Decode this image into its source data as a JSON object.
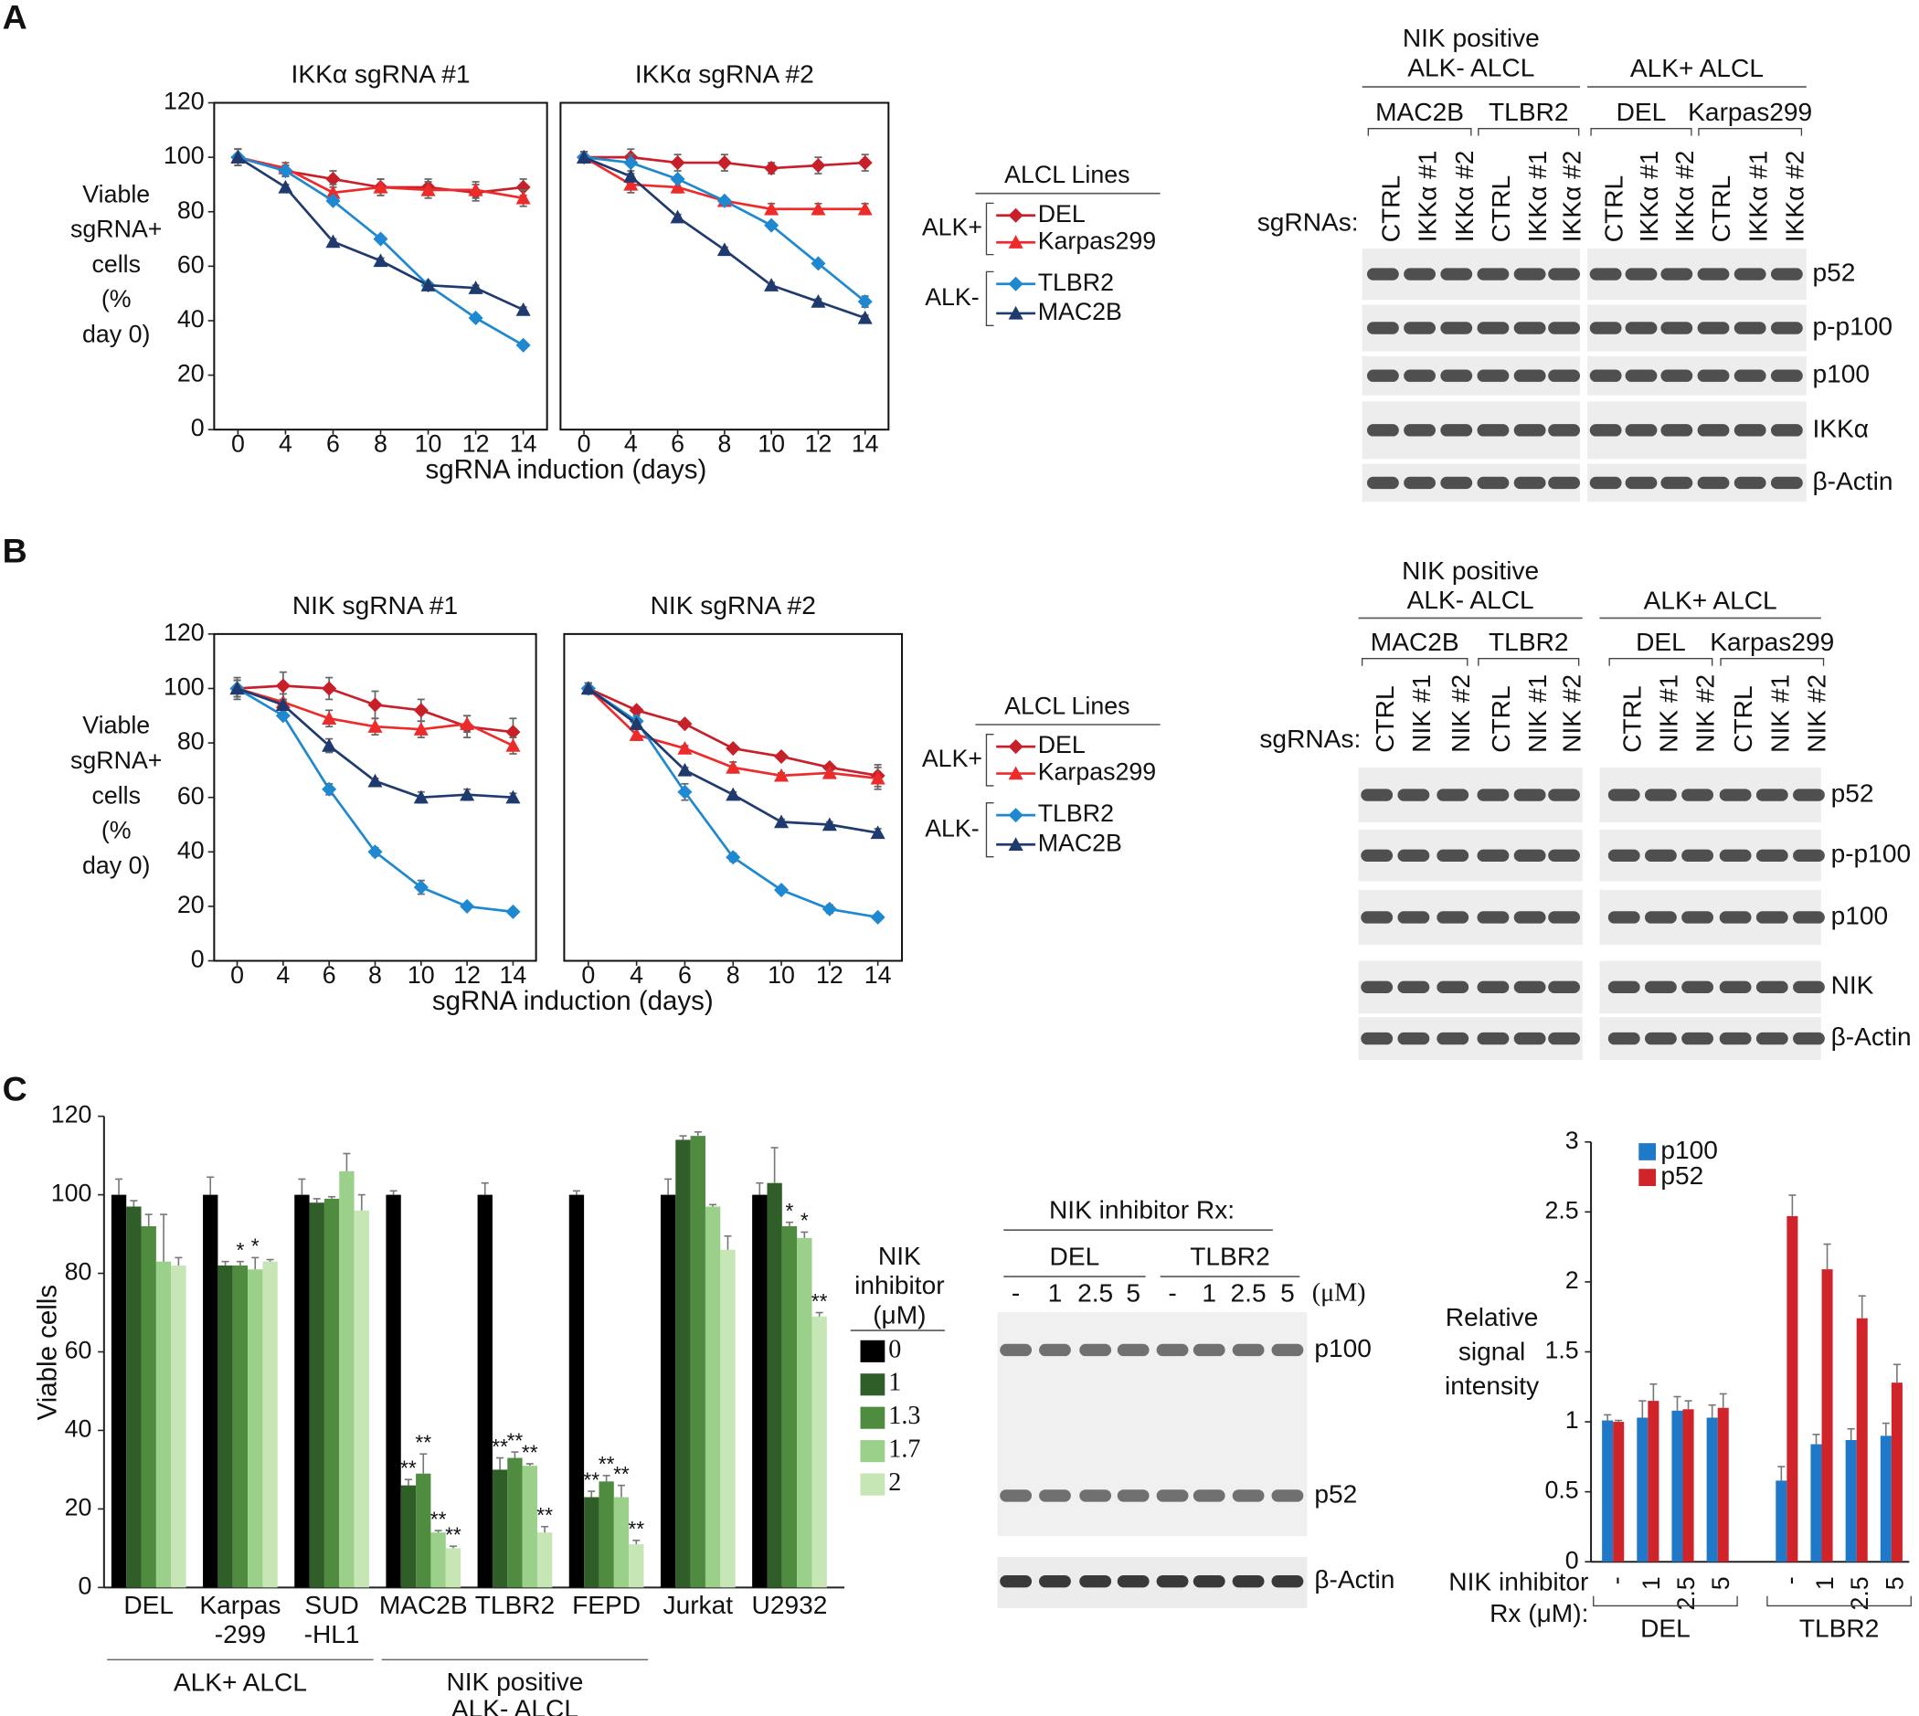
{
  "panel_labels": [
    "A",
    "B",
    "C"
  ],
  "chart_data": [
    {
      "type": "line",
      "title": "IKKα sgRNA #1",
      "ylabel": "Viable\nsgRNA+\ncells\n(%\nday 0)",
      "xlabel": "sgRNA induction (days)",
      "categories": [
        "0",
        "4",
        "6",
        "8",
        "10",
        "12",
        "14"
      ],
      "ylim": [
        0,
        120
      ],
      "yticks": [
        0,
        20,
        40,
        60,
        80,
        100,
        120
      ],
      "legend_title": "ALCL Lines",
      "legend_groups": [
        "ALK+",
        "ALK-"
      ],
      "series": [
        {
          "name": "DEL",
          "color": "#c8202a",
          "marker": "diamond",
          "values": [
            100,
            95,
            92,
            89,
            89,
            87,
            89
          ],
          "errors": [
            3,
            2,
            3,
            3,
            3,
            3,
            3
          ]
        },
        {
          "name": "Karpas299",
          "color": "#ee2b2b",
          "marker": "triangle",
          "values": [
            100,
            96,
            87,
            89,
            88,
            88,
            85
          ],
          "errors": [
            3,
            2,
            3,
            3,
            3,
            3,
            3
          ]
        },
        {
          "name": "TLBR2",
          "color": "#1e88d0",
          "marker": "diamond",
          "values": [
            100,
            95,
            84,
            70,
            53,
            41,
            31
          ],
          "errors": [
            3,
            2,
            1,
            1,
            1,
            1,
            1
          ]
        },
        {
          "name": "MAC2B",
          "color": "#1f3a6e",
          "marker": "triangle",
          "values": [
            100,
            89,
            69,
            62,
            53,
            52,
            44
          ],
          "errors": [
            3,
            1,
            1,
            1,
            1,
            1,
            1
          ]
        }
      ]
    },
    {
      "type": "line",
      "title": "IKKα sgRNA #2",
      "categories": [
        "0",
        "4",
        "6",
        "8",
        "10",
        "12",
        "14"
      ],
      "ylim": [
        0,
        120
      ],
      "series": [
        {
          "color": "#c8202a",
          "marker": "diamond",
          "values": [
            100,
            100,
            98,
            98,
            96,
            97,
            98
          ],
          "errors": [
            2,
            3,
            3,
            3,
            2,
            3,
            3
          ]
        },
        {
          "color": "#ee2b2b",
          "marker": "triangle",
          "values": [
            100,
            90,
            89,
            84,
            81,
            81,
            81
          ],
          "errors": [
            2,
            3,
            2,
            1,
            2,
            2,
            2
          ]
        },
        {
          "color": "#1e88d0",
          "marker": "diamond",
          "values": [
            100,
            98,
            92,
            84,
            75,
            61,
            47
          ],
          "errors": [
            2,
            3,
            1,
            1,
            1,
            1,
            2
          ]
        },
        {
          "color": "#1f3a6e",
          "marker": "triangle",
          "values": [
            100,
            93,
            78,
            66,
            53,
            47,
            41
          ],
          "errors": [
            2,
            1,
            1,
            1,
            1,
            1,
            1
          ]
        }
      ]
    },
    {
      "type": "line",
      "title": "NIK sgRNA #1",
      "ylabel": "Viable\nsgRNA+\ncells\n(%\nday 0)",
      "xlabel": "sgRNA induction (days)",
      "categories": [
        "0",
        "4",
        "6",
        "8",
        "10",
        "12",
        "14"
      ],
      "ylim": [
        0,
        120
      ],
      "yticks": [
        0,
        20,
        40,
        60,
        80,
        100,
        120
      ],
      "legend_title": "ALCL Lines",
      "legend_groups": [
        "ALK+",
        "ALK-"
      ],
      "series": [
        {
          "name": "DEL",
          "color": "#c8202a",
          "marker": "diamond",
          "values": [
            100,
            101,
            100,
            94,
            92,
            86,
            84
          ],
          "errors": [
            4,
            5,
            4,
            5,
            4,
            4,
            5
          ]
        },
        {
          "name": "Karpas299",
          "color": "#ee2b2b",
          "marker": "triangle",
          "values": [
            100,
            95,
            89,
            86,
            85,
            87,
            79
          ],
          "errors": [
            3,
            3,
            3,
            3,
            3,
            3,
            3
          ]
        },
        {
          "name": "TLBR2",
          "color": "#1e88d0",
          "marker": "diamond",
          "values": [
            100,
            90,
            63,
            40,
            27,
            20,
            18
          ],
          "errors": [
            3,
            1,
            2,
            1.5,
            2.5,
            1,
            1
          ]
        },
        {
          "name": "MAC2B",
          "color": "#1f3a6e",
          "marker": "triangle",
          "values": [
            100,
            94,
            79,
            66,
            60,
            61,
            60
          ],
          "errors": [
            3,
            2,
            2.5,
            1,
            2,
            2,
            1.5
          ]
        }
      ]
    },
    {
      "type": "line",
      "title": "NIK sgRNA #2",
      "categories": [
        "0",
        "4",
        "6",
        "8",
        "10",
        "12",
        "14"
      ],
      "ylim": [
        0,
        120
      ],
      "series": [
        {
          "color": "#c8202a",
          "marker": "diamond",
          "values": [
            100,
            92,
            87,
            78,
            75,
            71,
            68
          ],
          "errors": [
            2,
            1,
            1,
            1,
            1,
            1,
            4
          ]
        },
        {
          "color": "#ee2b2b",
          "marker": "triangle",
          "values": [
            100,
            83,
            78,
            71,
            68,
            69,
            67
          ],
          "errors": [
            2,
            2,
            1,
            2,
            1,
            1,
            4
          ]
        },
        {
          "color": "#1e88d0",
          "marker": "diamond",
          "values": [
            100,
            88,
            62,
            38,
            26,
            19,
            16
          ],
          "errors": [
            2,
            2,
            3,
            1.5,
            1,
            1.5,
            1
          ]
        },
        {
          "color": "#1f3a6e",
          "marker": "triangle",
          "values": [
            100,
            87,
            70,
            61,
            51,
            50,
            47
          ],
          "errors": [
            2,
            1,
            1,
            1,
            1,
            1,
            1.5
          ]
        }
      ]
    },
    {
      "type": "bar",
      "ylabel": "Viable cells",
      "ylim": [
        0,
        120
      ],
      "yticks": [
        0,
        20,
        40,
        60,
        80,
        100,
        120
      ],
      "legend_title": "NIK\ninhibitor\n(μM)",
      "groups": [
        {
          "label": "ALK+ ALCL",
          "categories": [
            "DEL",
            "Karpas\n-299",
            "SUD\n-HL1"
          ]
        },
        {
          "label": "NIK positive\nALK- ALCL",
          "categories": [
            "MAC2B",
            "TLBR2",
            "FEPD"
          ]
        },
        {
          "label": null,
          "categories": [
            "Jurkat",
            "U2932"
          ]
        }
      ],
      "series": [
        {
          "name": "0",
          "color": "#000000",
          "values": [
            100,
            100,
            100,
            100,
            100,
            100,
            100,
            100
          ],
          "errors": [
            4,
            4.5,
            4,
            1,
            3,
            1,
            4,
            3
          ],
          "significance": [
            null,
            null,
            null,
            null,
            null,
            null,
            null,
            null
          ]
        },
        {
          "name": "1",
          "color": "#2f5e28",
          "values": [
            97,
            82,
            98,
            26,
            30,
            23,
            114,
            103
          ],
          "errors": [
            1.5,
            1,
            1,
            1.5,
            3,
            1.5,
            1,
            9
          ],
          "significance": [
            null,
            null,
            null,
            "**",
            "**",
            "**",
            null,
            null
          ]
        },
        {
          "name": "1.3",
          "color": "#4f8c3f",
          "values": [
            92,
            82,
            99,
            29,
            33,
            27,
            115,
            92
          ],
          "errors": [
            3,
            1,
            0.5,
            5,
            1.5,
            1.5,
            1,
            1
          ],
          "significance": [
            null,
            "*",
            null,
            "**",
            "**",
            "**",
            null,
            "*"
          ]
        },
        {
          "name": "1.7",
          "color": "#9bd08a",
          "values": [
            83,
            81,
            106,
            14,
            31,
            23,
            97,
            89
          ],
          "errors": [
            12,
            3,
            4.5,
            0.5,
            0.5,
            3,
            0.5,
            1.5
          ],
          "significance": [
            null,
            "*",
            null,
            "**",
            "**",
            "**",
            null,
            "*"
          ]
        },
        {
          "name": "2",
          "color": "#c6e6b6",
          "values": [
            82,
            83,
            96,
            10,
            14,
            11,
            86,
            69
          ],
          "errors": [
            2,
            0.5,
            4,
            0.5,
            1.5,
            1,
            3.5,
            1
          ],
          "significance": [
            null,
            null,
            null,
            "**",
            "**",
            "**",
            null,
            "**"
          ]
        }
      ]
    },
    {
      "type": "bar",
      "ylabel": "Relative\nsignal\nintensity",
      "xlabel": "NIK inhibitor\nRx (μM):",
      "ylim": [
        0,
        3
      ],
      "yticks": [
        0,
        0.5,
        1,
        1.5,
        2,
        2.5,
        3
      ],
      "groups": [
        {
          "label": "DEL",
          "categories": [
            "-",
            "1",
            "2.5",
            "5"
          ]
        },
        {
          "label": "TLBR2",
          "categories": [
            "-",
            "1",
            "2.5",
            "5"
          ]
        }
      ],
      "series": [
        {
          "name": "p100",
          "color": "#1f78c8",
          "values": [
            1.01,
            1.03,
            1.08,
            1.03,
            0.58,
            0.84,
            0.87,
            0.9
          ],
          "errors": [
            0.04,
            0.12,
            0.1,
            0.09,
            0.1,
            0.07,
            0.08,
            0.09
          ]
        },
        {
          "name": "p52",
          "color": "#d0232a",
          "values": [
            1.0,
            1.15,
            1.09,
            1.1,
            2.47,
            2.09,
            1.74,
            1.28
          ],
          "errors": [
            0.01,
            0.12,
            0.06,
            0.1,
            0.15,
            0.18,
            0.16,
            0.13
          ]
        }
      ]
    }
  ],
  "blots": [
    {
      "label": "sgRNAs:",
      "groups": [
        {
          "name": "NIK positive\nALK- ALCL",
          "lines": [
            {
              "name": "MAC2B",
              "lanes": [
                "CTRL",
                "IKKα #1",
                "IKKα #2"
              ]
            },
            {
              "name": "TLBR2",
              "lanes": [
                "CTRL",
                "IKKα #1",
                "IKKα #2"
              ]
            }
          ]
        },
        {
          "name": "ALK+ ALCL",
          "lines": [
            {
              "name": "DEL",
              "lanes": [
                "CTRL",
                "IKKα #1",
                "IKKα #2"
              ]
            },
            {
              "name": "Karpas299",
              "lanes": [
                "CTRL",
                "IKKα #1",
                "IKKα #2"
              ]
            }
          ]
        }
      ],
      "rows": [
        "p52",
        "p-p100",
        "p100",
        "IKKα",
        "β-Actin"
      ]
    },
    {
      "label": "sgRNAs:",
      "groups": [
        {
          "name": "NIK positive\nALK- ALCL",
          "lines": [
            {
              "name": "MAC2B",
              "lanes": [
                "CTRL",
                "NIK #1",
                "NIK #2"
              ]
            },
            {
              "name": "TLBR2",
              "lanes": [
                "CTRL",
                "NIK #1",
                "NIK #2"
              ]
            }
          ]
        },
        {
          "name": "ALK+ ALCL",
          "lines": [
            {
              "name": "DEL",
              "lanes": [
                "CTRL",
                "NIK #1",
                "NIK #2"
              ]
            },
            {
              "name": "Karpas299",
              "lanes": [
                "CTRL",
                "NIK #1",
                "NIK #2"
              ]
            }
          ]
        }
      ],
      "rows": [
        "p52",
        "p-p100",
        "p100",
        "NIK",
        "β-Actin"
      ]
    },
    {
      "title": "NIK inhibitor Rx:",
      "unit": "(μM)",
      "lines": [
        {
          "name": "DEL",
          "lanes": [
            "-",
            "1",
            "2.5",
            "5"
          ]
        },
        {
          "name": "TLBR2",
          "lanes": [
            "-",
            "1",
            "2.5",
            "5"
          ]
        }
      ],
      "rows": [
        "p100",
        "p52",
        "β-Actin"
      ]
    }
  ]
}
